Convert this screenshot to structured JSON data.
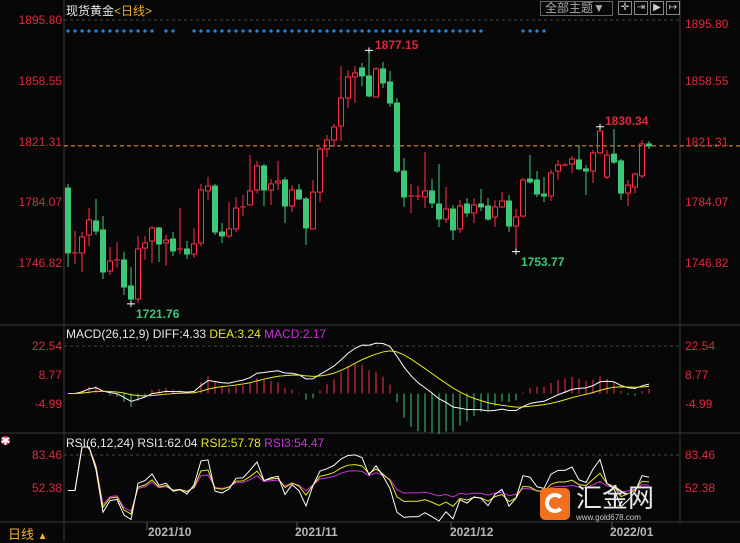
{
  "header": {
    "instrument": "现货黄金",
    "period_open": "<",
    "period": "日线",
    "period_close": ">",
    "theme_button": "全部主题▼",
    "tool_icons": [
      "crosshair-icon",
      "zoom-fit-icon",
      "play-icon",
      "shift-right-icon"
    ]
  },
  "colors": {
    "up": "#ff3048",
    "down": "#3cc878",
    "current_line": "#f0a030",
    "diff": "#ffffff",
    "dea": "#e8e820",
    "macd": "#d030e0",
    "rsi1": "#ffffff",
    "rsi2": "#e8e820",
    "rsi3": "#d030e0",
    "dots": "#1e88e5"
  },
  "footer": {
    "period_label": "日线",
    "period_arrow": "▲",
    "dates": [
      "2021/10",
      "2021/11",
      "2021/12",
      "2022/01"
    ]
  },
  "watermark": {
    "name": "汇金网",
    "url": "www.gold678.com"
  },
  "chart_data": [
    {
      "type": "candlestick",
      "title": "现货黄金<日线>",
      "ylim": [
        1721.76,
        1895.8
      ],
      "yticks": [
        "1895.80",
        "1858.55",
        "1821.31",
        "1784.07",
        "1746.82"
      ],
      "current_price": 1818.6,
      "annotations": [
        {
          "label": "1877.15",
          "kind": "high"
        },
        {
          "label": "1830.34",
          "kind": "high"
        },
        {
          "label": "1753.77",
          "kind": "low"
        },
        {
          "label": "1721.76",
          "kind": "low"
        }
      ],
      "signal_dots_missing": [
        13,
        16,
        17,
        60,
        61,
        62,
        63,
        64,
        69,
        70,
        71,
        72,
        73,
        74,
        75,
        76,
        77,
        78,
        79,
        80,
        81,
        82,
        83
      ],
      "ohlc": [
        [
          1792.8,
          1795.3,
          1744.4,
          1753.0
        ],
        [
          1753.0,
          1766.4,
          1746.2,
          1753.0
        ],
        [
          1753.0,
          1765.8,
          1741.3,
          1762.8
        ],
        [
          1764.0,
          1780.5,
          1757.2,
          1773.2
        ],
        [
          1772.6,
          1786.1,
          1764.0,
          1766.4
        ],
        [
          1767.1,
          1775.6,
          1737.0,
          1741.3
        ],
        [
          1741.9,
          1756.6,
          1739.5,
          1748.0
        ],
        [
          1748.7,
          1759.7,
          1743.8,
          1748.7
        ],
        [
          1748.7,
          1753.6,
          1727.2,
          1732.1
        ],
        [
          1732.7,
          1744.4,
          1721.76,
          1724.7
        ],
        [
          1724.7,
          1763.4,
          1722.5,
          1755.4
        ],
        [
          1756.0,
          1763.4,
          1748.7,
          1759.1
        ],
        [
          1760.3,
          1769.5,
          1746.8,
          1768.3
        ],
        [
          1768.3,
          1768.9,
          1747.4,
          1758.5
        ],
        [
          1759.1,
          1764.0,
          1745.0,
          1760.9
        ],
        [
          1761.5,
          1765.8,
          1751.1,
          1754.2
        ],
        [
          1755.4,
          1780.5,
          1752.3,
          1755.4
        ],
        [
          1755.4,
          1760.3,
          1749.3,
          1752.3
        ],
        [
          1752.3,
          1768.3,
          1749.9,
          1758.5
        ],
        [
          1759.1,
          1795.3,
          1757.2,
          1791.6
        ],
        [
          1791.0,
          1799.5,
          1785.4,
          1794.0
        ],
        [
          1794.0,
          1795.3,
          1764.0,
          1765.8
        ],
        [
          1765.8,
          1771.3,
          1759.1,
          1763.4
        ],
        [
          1763.4,
          1784.2,
          1762.1,
          1767.7
        ],
        [
          1767.7,
          1787.3,
          1765.8,
          1780.5
        ],
        [
          1781.2,
          1788.5,
          1775.6,
          1781.2
        ],
        [
          1782.4,
          1813.0,
          1782.4,
          1791.0
        ],
        [
          1791.6,
          1809.4,
          1789.5,
          1806.3
        ],
        [
          1806.3,
          1807.5,
          1781.8,
          1791.6
        ],
        [
          1791.6,
          1798.3,
          1782.4,
          1795.3
        ],
        [
          1795.9,
          1809.4,
          1791.6,
          1797.1
        ],
        [
          1797.7,
          1799.5,
          1771.3,
          1781.8
        ],
        [
          1781.8,
          1794.6,
          1778.1,
          1791.6
        ],
        [
          1791.6,
          1795.3,
          1785.4,
          1786.1
        ],
        [
          1786.1,
          1787.3,
          1757.9,
          1768.3
        ],
        [
          1767.7,
          1797.7,
          1767.7,
          1790.3
        ],
        [
          1790.3,
          1817.9,
          1784.2,
          1816.7
        ],
        [
          1816.7,
          1825.3,
          1811.8,
          1822.2
        ],
        [
          1822.2,
          1832.0,
          1817.9,
          1830.2
        ],
        [
          1830.8,
          1867.6,
          1821.6,
          1848.0
        ],
        [
          1848.0,
          1865.1,
          1841.9,
          1860.9
        ],
        [
          1860.9,
          1867.6,
          1844.9,
          1863.3
        ],
        [
          1866.4,
          1869.4,
          1855.3,
          1861.5
        ],
        [
          1861.5,
          1877.15,
          1848.6,
          1849.2
        ],
        [
          1848.6,
          1867.0,
          1848.6,
          1865.8
        ],
        [
          1865.8,
          1870.1,
          1854.1,
          1857.2
        ],
        [
          1857.8,
          1864.5,
          1842.5,
          1844.9
        ],
        [
          1844.9,
          1848.0,
          1802.0,
          1803.2
        ],
        [
          1803.2,
          1811.2,
          1781.2,
          1787.3
        ],
        [
          1787.9,
          1795.3,
          1777.5,
          1787.9
        ],
        [
          1787.9,
          1794.0,
          1785.4,
          1787.9
        ],
        [
          1787.3,
          1814.9,
          1780.5,
          1791.0
        ],
        [
          1791.0,
          1798.3,
          1780.5,
          1783.6
        ],
        [
          1783.0,
          1807.5,
          1768.9,
          1773.8
        ],
        [
          1773.8,
          1793.4,
          1771.3,
          1779.9
        ],
        [
          1779.9,
          1782.4,
          1760.9,
          1767.1
        ],
        [
          1767.7,
          1785.4,
          1765.2,
          1781.8
        ],
        [
          1783.0,
          1786.7,
          1775.0,
          1777.5
        ],
        [
          1777.5,
          1786.7,
          1771.3,
          1782.4
        ],
        [
          1783.0,
          1792.2,
          1778.7,
          1781.2
        ],
        [
          1781.8,
          1786.7,
          1772.6,
          1773.8
        ],
        [
          1775.0,
          1785.4,
          1768.9,
          1781.2
        ],
        [
          1781.2,
          1790.3,
          1780.5,
          1784.8
        ],
        [
          1784.8,
          1788.5,
          1765.8,
          1769.5
        ],
        [
          1769.5,
          1779.9,
          1753.77,
          1775.0
        ],
        [
          1775.6,
          1798.9,
          1775.0,
          1797.7
        ],
        [
          1798.3,
          1813.0,
          1795.3,
          1796.5
        ],
        [
          1797.7,
          1803.2,
          1787.3,
          1789.1
        ],
        [
          1789.1,
          1799.5,
          1784.2,
          1787.9
        ],
        [
          1787.9,
          1803.8,
          1784.8,
          1802.0
        ],
        [
          1803.2,
          1810.0,
          1797.7,
          1806.9
        ],
        [
          1806.9,
          1808.1,
          1806.3,
          1806.9
        ],
        [
          1807.5,
          1812.4,
          1802.0,
          1810.6
        ],
        [
          1810.0,
          1819.2,
          1803.8,
          1804.5
        ],
        [
          1804.5,
          1806.9,
          1788.5,
          1803.2
        ],
        [
          1803.2,
          1816.1,
          1795.9,
          1814.3
        ],
        [
          1814.3,
          1830.34,
          1813.6,
          1827.7
        ],
        [
          1799.5,
          1816.1,
          1798.3,
          1813.0
        ],
        [
          1813.6,
          1829.0,
          1807.5,
          1808.7
        ],
        [
          1809.4,
          1810.6,
          1785.4,
          1789.7
        ],
        [
          1789.7,
          1797.7,
          1781.8,
          1794.6
        ],
        [
          1793.4,
          1802.0,
          1789.7,
          1801.4
        ],
        [
          1800.2,
          1822.2,
          1798.9,
          1819.8
        ],
        [
          1819.8,
          1821.6,
          1816.7,
          1818.6
        ]
      ]
    },
    {
      "type": "line+bar",
      "title": "MACD(26,12,9)",
      "legend": [
        {
          "label": "DIFF:4.33"
        },
        {
          "label": "DEA:3.24"
        },
        {
          "label": "MACD:2.17"
        }
      ],
      "yticks": [
        "22.54",
        "8.77",
        "-4.99"
      ]
    },
    {
      "type": "line",
      "title": "RSI(6,12,24)",
      "legend": [
        {
          "label": "RSI1:62.04"
        },
        {
          "label": "RSI2:57.78"
        },
        {
          "label": "RSI3:54.47"
        }
      ],
      "yticks": [
        "83.46",
        "52.38"
      ]
    }
  ]
}
